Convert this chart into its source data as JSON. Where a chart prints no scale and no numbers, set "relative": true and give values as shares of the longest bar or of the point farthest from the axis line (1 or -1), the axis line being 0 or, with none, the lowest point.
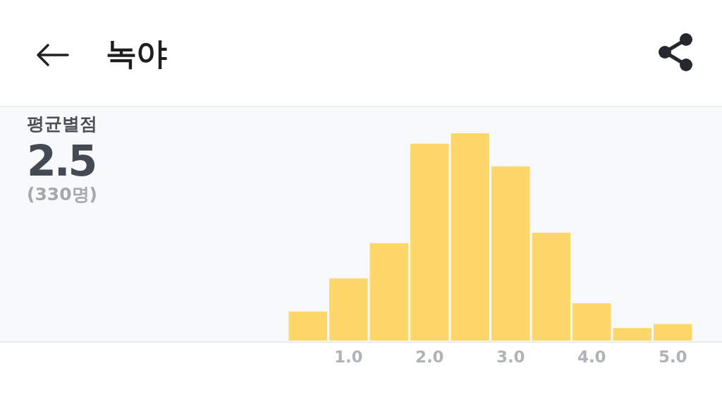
{
  "chart_data": {
    "type": "bar",
    "title": "녹야",
    "annotations": [
      "평균별점",
      "2.5",
      "(330명)"
    ],
    "categories": [
      null,
      "1.0",
      null,
      "2.0",
      null,
      "3.0",
      null,
      "4.0",
      null,
      "5.0"
    ],
    "values": [
      0.14,
      0.3,
      0.47,
      0.95,
      1,
      0.84,
      0.52,
      0.18,
      0.06,
      0.08
    ],
    "color": "#fed76a",
    "relative": true
  }
}
